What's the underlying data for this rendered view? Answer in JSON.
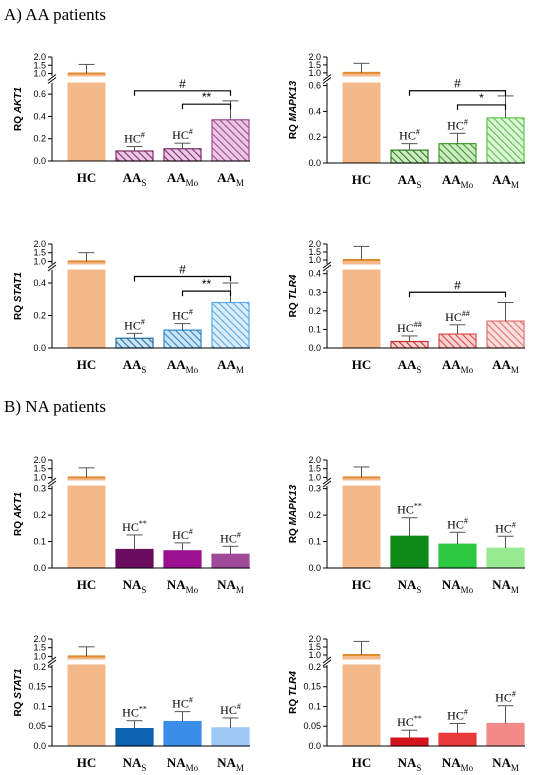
{
  "sections": [
    {
      "title": "A) AA patients"
    },
    {
      "title": "B) NA patients"
    }
  ],
  "chart_data": [
    {
      "type": "bar",
      "section": "A",
      "ylabel_prefix": "RQ",
      "ylabel_gene": "AKT1",
      "categories": [
        {
          "main": "HC",
          "sub": ""
        },
        {
          "main": "AA",
          "sub": "S"
        },
        {
          "main": "AA",
          "sub": "Mo"
        },
        {
          "main": "AA",
          "sub": "M"
        }
      ],
      "values": [
        1.0,
        0.09,
        0.11,
        0.37
      ],
      "errors": [
        0.55,
        0.04,
        0.05,
        0.17
      ],
      "bar_labels": [
        {
          "text": "",
          "sup": ""
        },
        {
          "text": "HC",
          "sup": "#"
        },
        {
          "text": "HC",
          "sup": "#"
        },
        {
          "text": "",
          "sup": ""
        }
      ],
      "lower_ticks": [
        0.0,
        0.2,
        0.4,
        0.6
      ],
      "lower_max": 0.7,
      "upper_ticks": [
        1.0,
        1.5,
        2.0
      ],
      "upper_range": [
        0.85,
        2.0
      ],
      "brackets": [
        {
          "from": 1,
          "to": 3,
          "label": "#",
          "y": 0.63
        },
        {
          "from": 2,
          "to": 3,
          "label": "**",
          "y": 0.51
        }
      ],
      "colors": [
        "#F4B98A",
        "#7A2E68",
        "#7A2E68",
        "#A24A92"
      ],
      "fills": [
        "solid",
        "hatch",
        "hatch",
        "hatch"
      ],
      "hatch_bg": [
        "",
        "#EBC9E6",
        "#EBC9E6",
        "#EBC9E6"
      ]
    },
    {
      "type": "bar",
      "section": "A",
      "ylabel_prefix": "RQ",
      "ylabel_gene": "MAPK13",
      "categories": [
        {
          "main": "HC",
          "sub": ""
        },
        {
          "main": "AA",
          "sub": "S"
        },
        {
          "main": "AA",
          "sub": "Mo"
        },
        {
          "main": "AA",
          "sub": "M"
        }
      ],
      "values": [
        1.0,
        0.1,
        0.15,
        0.35
      ],
      "errors": [
        0.6,
        0.05,
        0.08,
        0.17
      ],
      "bar_labels": [
        {
          "text": "",
          "sup": ""
        },
        {
          "text": "HC",
          "sup": "#"
        },
        {
          "text": "HC",
          "sup": "#"
        },
        {
          "text": "",
          "sup": ""
        }
      ],
      "lower_ticks": [
        0.0,
        0.2,
        0.4,
        0.6
      ],
      "lower_max": 0.62,
      "upper_ticks": [
        1.0,
        1.5,
        2.0
      ],
      "upper_range": [
        0.8,
        2.0
      ],
      "brackets": [
        {
          "from": 1,
          "to": 3,
          "label": "#",
          "y": 0.56
        },
        {
          "from": 2,
          "to": 3,
          "label": "*",
          "y": 0.45
        }
      ],
      "colors": [
        "#F4B98A",
        "#2E7D1E",
        "#3D9A2A",
        "#5CC64A"
      ],
      "fills": [
        "solid",
        "hatch",
        "hatch",
        "hatch"
      ],
      "hatch_bg": [
        "",
        "#CFEBC6",
        "#CFEBC6",
        "#DDF4D6"
      ]
    },
    {
      "type": "bar",
      "section": "A",
      "ylabel_prefix": "RQ",
      "ylabel_gene": "STAT1",
      "categories": [
        {
          "main": "HC",
          "sub": ""
        },
        {
          "main": "AA",
          "sub": "S"
        },
        {
          "main": "AA",
          "sub": "Mo"
        },
        {
          "main": "AA",
          "sub": "M"
        }
      ],
      "values": [
        1.0,
        0.06,
        0.11,
        0.28
      ],
      "errors": [
        0.5,
        0.03,
        0.04,
        0.12
      ],
      "bar_labels": [
        {
          "text": "",
          "sup": ""
        },
        {
          "text": "HC",
          "sup": "#"
        },
        {
          "text": "HC",
          "sup": "#"
        },
        {
          "text": "",
          "sup": ""
        }
      ],
      "lower_ticks": [
        0.0,
        0.2,
        0.4
      ],
      "lower_max": 0.48,
      "upper_ticks": [
        1.0,
        1.5,
        2.0
      ],
      "upper_range": [
        0.85,
        2.0
      ],
      "brackets": [
        {
          "from": 1,
          "to": 3,
          "label": "#",
          "y": 0.44
        },
        {
          "from": 2,
          "to": 3,
          "label": "**",
          "y": 0.35
        }
      ],
      "colors": [
        "#F4B98A",
        "#1E6FA8",
        "#2E86C8",
        "#5AA8E8"
      ],
      "fills": [
        "solid",
        "hatch",
        "hatch",
        "hatch"
      ],
      "hatch_bg": [
        "",
        "#CDE4F5",
        "#CDE4F5",
        "#DCEEFA"
      ]
    },
    {
      "type": "bar",
      "section": "A",
      "ylabel_prefix": "RQ",
      "ylabel_gene": "TLR4",
      "categories": [
        {
          "main": "HC",
          "sub": ""
        },
        {
          "main": "AA",
          "sub": "S"
        },
        {
          "main": "AA",
          "sub": "Mo"
        },
        {
          "main": "AA",
          "sub": "M"
        }
      ],
      "values": [
        1.0,
        0.035,
        0.075,
        0.145
      ],
      "errors": [
        0.85,
        0.03,
        0.05,
        0.1
      ],
      "bar_labels": [
        {
          "text": "",
          "sup": ""
        },
        {
          "text": "HC",
          "sup": "##"
        },
        {
          "text": "HC",
          "sup": "##"
        },
        {
          "text": "",
          "sup": ""
        }
      ],
      "lower_ticks": [
        0.0,
        0.1,
        0.2,
        0.3,
        0.4
      ],
      "lower_max": 0.42,
      "upper_ticks": [
        1.0,
        1.5,
        2.0
      ],
      "upper_range": [
        0.75,
        2.0
      ],
      "brackets": [
        {
          "from": 1,
          "to": 3,
          "label": "#",
          "y": 0.3
        }
      ],
      "colors": [
        "#F4B98A",
        "#C8302E",
        "#D84A48",
        "#E27270"
      ],
      "fills": [
        "solid",
        "hatch",
        "hatch",
        "hatch"
      ],
      "hatch_bg": [
        "",
        "#F7D3D2",
        "#F7D3D2",
        "#FADFDE"
      ]
    },
    {
      "type": "bar",
      "section": "B",
      "ylabel_prefix": "RQ",
      "ylabel_gene": "AKT1",
      "categories": [
        {
          "main": "HC",
          "sub": ""
        },
        {
          "main": "NA",
          "sub": "S"
        },
        {
          "main": "NA",
          "sub": "Mo"
        },
        {
          "main": "NA",
          "sub": "M"
        }
      ],
      "values": [
        1.0,
        0.07,
        0.065,
        0.052
      ],
      "errors": [
        0.55,
        0.055,
        0.03,
        0.03
      ],
      "bar_labels": [
        {
          "text": "",
          "sup": ""
        },
        {
          "text": "HC",
          "sup": "**"
        },
        {
          "text": "HC",
          "sup": "#"
        },
        {
          "text": "HC",
          "sup": "#"
        }
      ],
      "lower_ticks": [
        0.0,
        0.1,
        0.2,
        0.3
      ],
      "lower_max": 0.31,
      "upper_ticks": [
        1.0,
        1.5,
        2.0
      ],
      "upper_range": [
        0.85,
        2.0
      ],
      "brackets": [],
      "colors": [
        "#F4B98A",
        "#6A0D5E",
        "#9A1090",
        "#A24A9A"
      ],
      "fills": [
        "solid",
        "solid",
        "solid",
        "solid"
      ],
      "hatch_bg": [
        "",
        "",
        "",
        ""
      ]
    },
    {
      "type": "bar",
      "section": "B",
      "ylabel_prefix": "RQ",
      "ylabel_gene": "MAPK13",
      "categories": [
        {
          "main": "HC",
          "sub": ""
        },
        {
          "main": "NA",
          "sub": "S"
        },
        {
          "main": "NA",
          "sub": "Mo"
        },
        {
          "main": "NA",
          "sub": "M"
        }
      ],
      "values": [
        1.0,
        0.12,
        0.09,
        0.075
      ],
      "errors": [
        0.6,
        0.07,
        0.045,
        0.045
      ],
      "bar_labels": [
        {
          "text": "",
          "sup": ""
        },
        {
          "text": "HC",
          "sup": "**"
        },
        {
          "text": "HC",
          "sup": "#"
        },
        {
          "text": "HC",
          "sup": "#"
        }
      ],
      "lower_ticks": [
        0.0,
        0.1,
        0.2,
        0.3
      ],
      "lower_max": 0.31,
      "upper_ticks": [
        1.0,
        1.5,
        2.0
      ],
      "upper_range": [
        0.85,
        2.0
      ],
      "brackets": [],
      "colors": [
        "#F4B98A",
        "#0E8A18",
        "#2CC840",
        "#98EA90"
      ],
      "fills": [
        "solid",
        "solid",
        "solid",
        "solid"
      ],
      "hatch_bg": [
        "",
        "",
        "",
        ""
      ]
    },
    {
      "type": "bar",
      "section": "B",
      "ylabel_prefix": "RQ",
      "ylabel_gene": "STAT1",
      "categories": [
        {
          "main": "HC",
          "sub": ""
        },
        {
          "main": "NA",
          "sub": "S"
        },
        {
          "main": "NA",
          "sub": "Mo"
        },
        {
          "main": "NA",
          "sub": "M"
        }
      ],
      "values": [
        1.0,
        0.044,
        0.062,
        0.046
      ],
      "errors": [
        0.55,
        0.02,
        0.025,
        0.025
      ],
      "bar_labels": [
        {
          "text": "",
          "sup": ""
        },
        {
          "text": "HC",
          "sup": "**"
        },
        {
          "text": "HC",
          "sup": "#"
        },
        {
          "text": "HC",
          "sup": "#"
        }
      ],
      "lower_ticks": [
        0.0,
        0.05,
        0.1,
        0.15,
        0.2
      ],
      "lower_max": 0.205,
      "upper_ticks": [
        1.0,
        1.5,
        2.0
      ],
      "upper_range": [
        0.85,
        2.0
      ],
      "brackets": [],
      "colors": [
        "#F4B98A",
        "#0B62B0",
        "#3A8EEA",
        "#9CC8F6"
      ],
      "fills": [
        "solid",
        "solid",
        "solid",
        "solid"
      ],
      "hatch_bg": [
        "",
        "",
        "",
        ""
      ]
    },
    {
      "type": "bar",
      "section": "B",
      "ylabel_prefix": "RQ",
      "ylabel_gene": "TLR4",
      "categories": [
        {
          "main": "HC",
          "sub": ""
        },
        {
          "main": "NA",
          "sub": "S"
        },
        {
          "main": "NA",
          "sub": "Mo"
        },
        {
          "main": "NA",
          "sub": "M"
        }
      ],
      "values": [
        1.0,
        0.02,
        0.032,
        0.057
      ],
      "errors": [
        0.85,
        0.02,
        0.025,
        0.045
      ],
      "bar_labels": [
        {
          "text": "",
          "sup": ""
        },
        {
          "text": "HC",
          "sup": "**"
        },
        {
          "text": "HC",
          "sup": "#"
        },
        {
          "text": "HC",
          "sup": "#"
        }
      ],
      "lower_ticks": [
        0.0,
        0.05,
        0.1,
        0.15,
        0.2
      ],
      "lower_max": 0.205,
      "upper_ticks": [
        1.0,
        1.5,
        2.0
      ],
      "upper_range": [
        0.75,
        2.0
      ],
      "brackets": [],
      "colors": [
        "#F4B98A",
        "#D4141C",
        "#E83A3A",
        "#F28A8A"
      ],
      "fills": [
        "solid",
        "solid",
        "solid",
        "solid"
      ],
      "hatch_bg": [
        "",
        "",
        "",
        ""
      ]
    }
  ]
}
